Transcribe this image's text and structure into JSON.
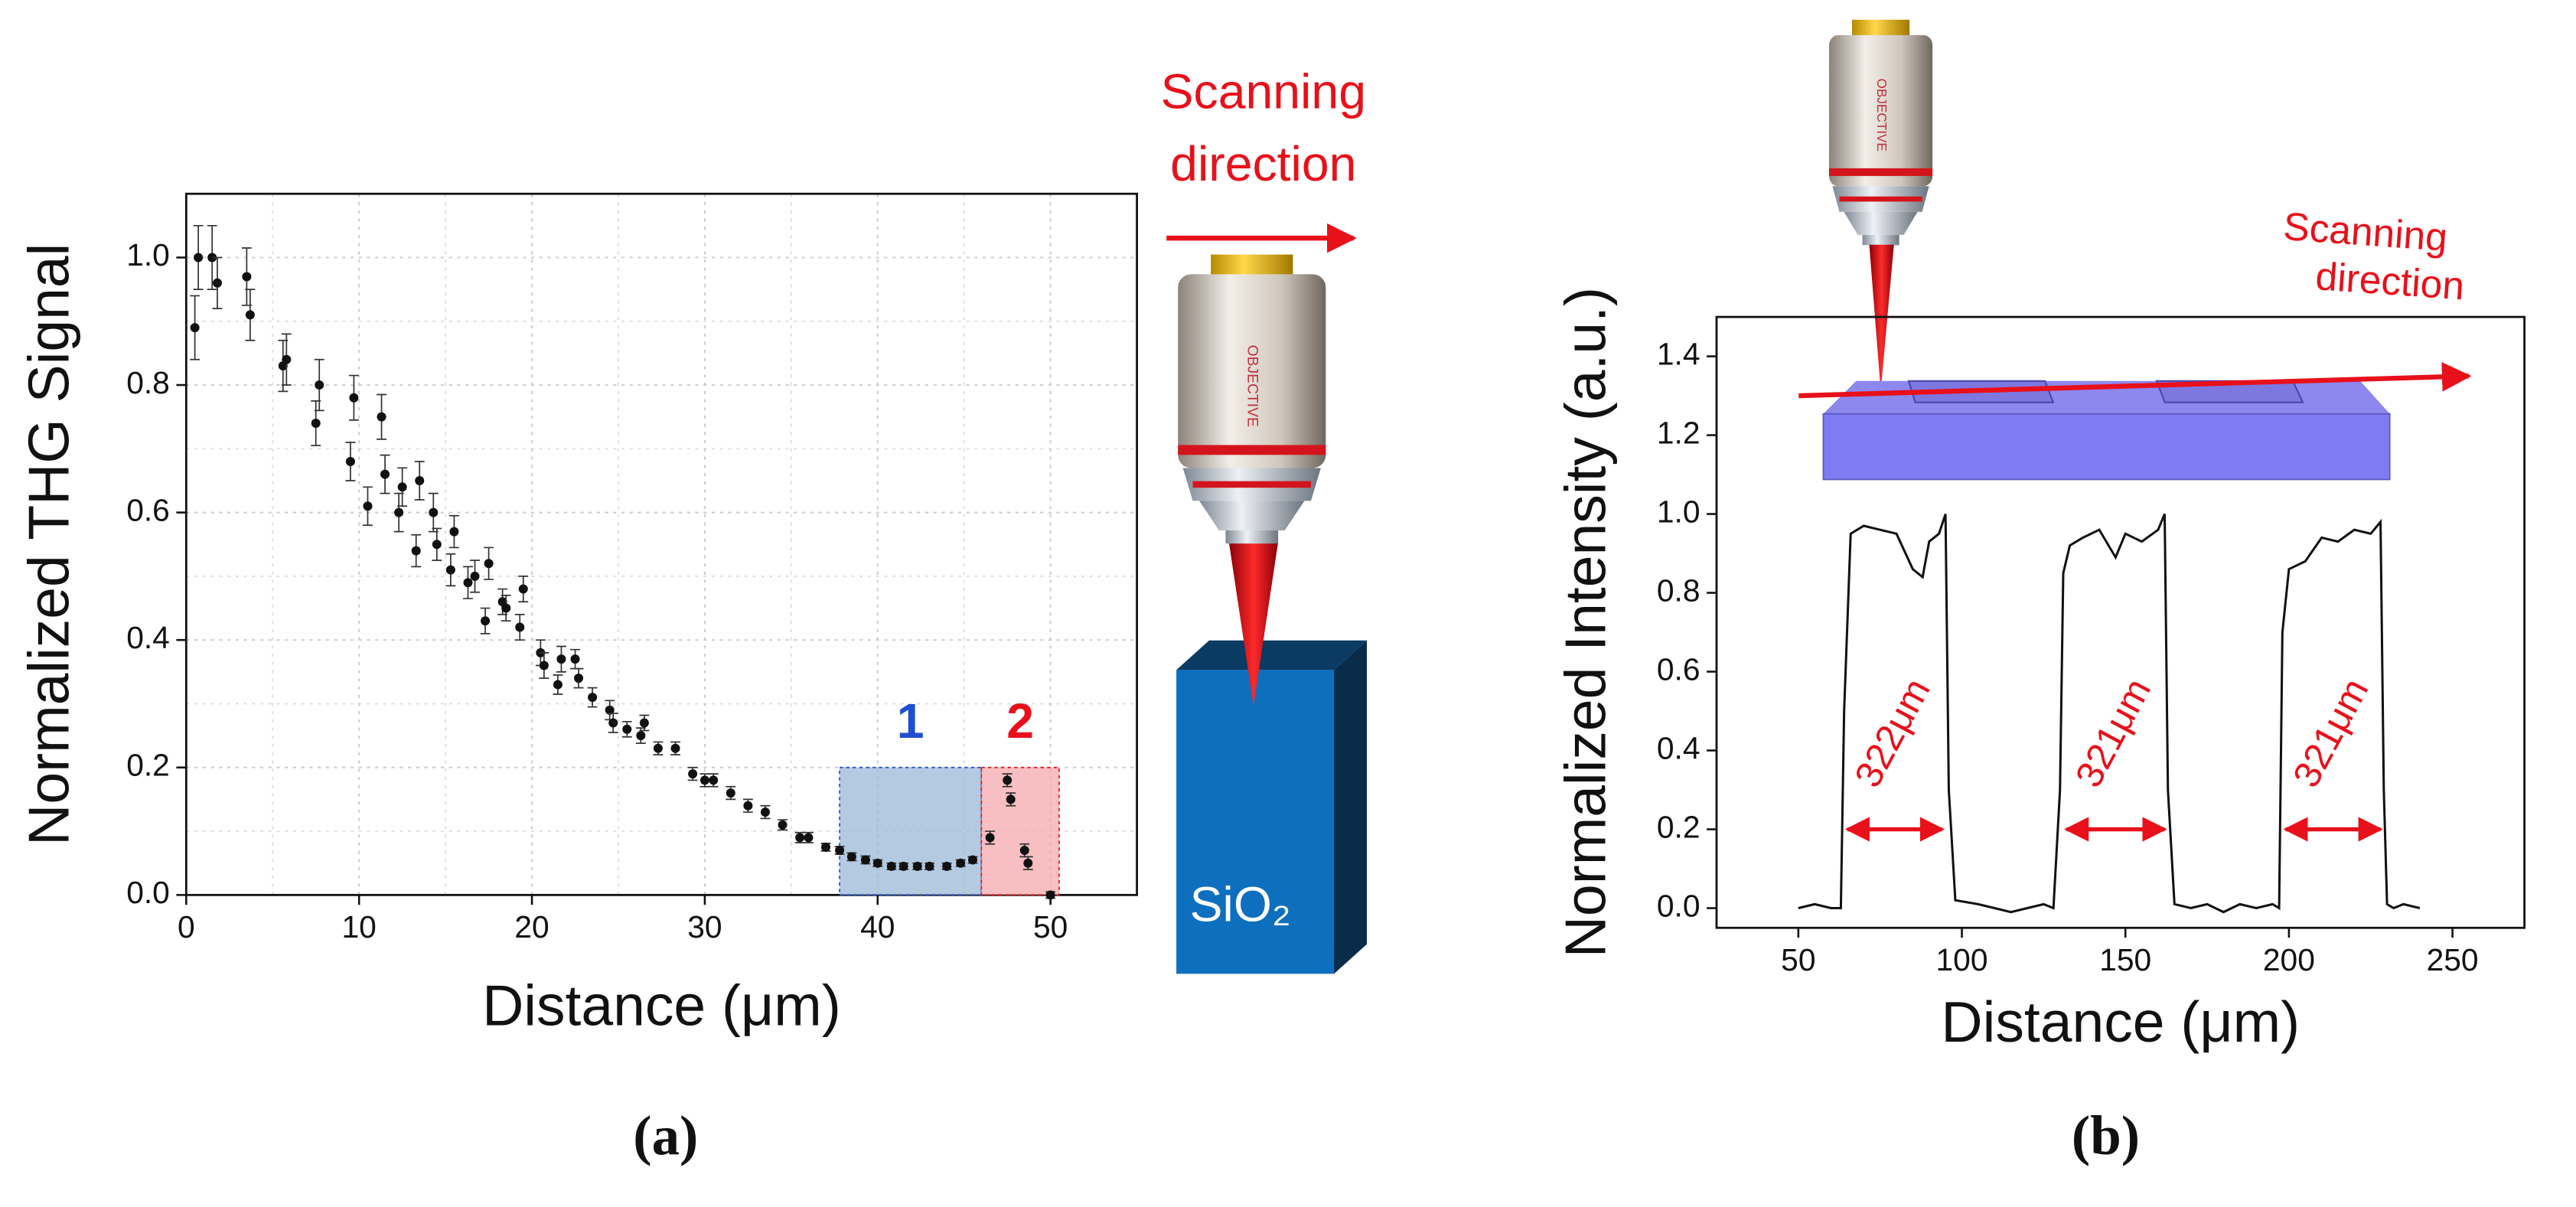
{
  "chart_data": [
    {
      "type": "scatter",
      "y_label": "Normalized THG Signal",
      "x_label": "Distance (μm)",
      "panel_label": "(a)",
      "x": [
        0.5,
        0.7,
        1.5,
        1.8,
        3.5,
        3.7,
        5.6,
        5.8,
        7.5,
        7.7,
        9.5,
        9.7,
        10.5,
        11.3,
        11.5,
        12.3,
        12.5,
        13.3,
        13.5,
        14.3,
        14.5,
        15.3,
        15.5,
        16.3,
        16.7,
        17.3,
        17.5,
        18.3,
        18.5,
        19.3,
        19.5,
        20.5,
        20.7,
        21.5,
        21.7,
        22.5,
        22.7,
        23.5,
        24.5,
        24.7,
        25.5,
        26.3,
        26.5,
        27.3,
        28.3,
        29.3,
        30,
        30.5,
        31.5,
        32.5,
        33.5,
        34.5,
        35.5,
        36,
        37,
        37.8,
        38.5,
        39.3,
        40,
        40.8,
        41.5,
        42.3,
        43,
        44,
        44.8,
        45.5,
        46.5,
        47.5,
        47.7,
        48.5,
        48.7,
        50
      ],
      "values": [
        0.89,
        1.0,
        1.0,
        0.96,
        0.97,
        0.91,
        0.83,
        0.84,
        0.74,
        0.8,
        0.68,
        0.78,
        0.61,
        0.75,
        0.66,
        0.6,
        0.64,
        0.54,
        0.65,
        0.6,
        0.55,
        0.51,
        0.57,
        0.49,
        0.5,
        0.43,
        0.52,
        0.46,
        0.45,
        0.42,
        0.48,
        0.38,
        0.36,
        0.33,
        0.37,
        0.37,
        0.34,
        0.31,
        0.29,
        0.27,
        0.26,
        0.25,
        0.27,
        0.23,
        0.23,
        0.19,
        0.18,
        0.18,
        0.16,
        0.14,
        0.13,
        0.11,
        0.09,
        0.09,
        0.075,
        0.07,
        0.06,
        0.055,
        0.05,
        0.045,
        0.045,
        0.045,
        0.045,
        0.045,
        0.05,
        0.055,
        0.09,
        0.18,
        0.15,
        0.07,
        0.05,
        0.0
      ],
      "errors": [
        0.05,
        0.05,
        0.05,
        0.04,
        0.045,
        0.04,
        0.04,
        0.04,
        0.035,
        0.04,
        0.03,
        0.035,
        0.03,
        0.035,
        0.03,
        0.03,
        0.03,
        0.025,
        0.03,
        0.03,
        0.025,
        0.025,
        0.025,
        0.025,
        0.025,
        0.02,
        0.025,
        0.02,
        0.02,
        0.02,
        0.02,
        0.02,
        0.02,
        0.015,
        0.02,
        0.015,
        0.015,
        0.015,
        0.015,
        0.015,
        0.012,
        0.012,
        0.012,
        0.01,
        0.01,
        0.01,
        0.01,
        0.01,
        0.01,
        0.01,
        0.01,
        0.008,
        0.008,
        0.008,
        0.006,
        0.006,
        0.006,
        0.006,
        0.005,
        0.005,
        0.005,
        0.005,
        0.005,
        0.005,
        0.005,
        0.005,
        0.01,
        0.01,
        0.01,
        0.01,
        0.01,
        0.005
      ],
      "color": "#111111",
      "xlim": [
        0,
        55
      ],
      "ylim": [
        0,
        1.1
      ],
      "xticks": [
        0,
        10,
        20,
        30,
        40,
        50
      ],
      "yticks": [
        {
          "value": 0,
          "label": "0.0"
        },
        0.2,
        0.4,
        0.6,
        0.8,
        {
          "value": 1,
          "label": "1.0"
        }
      ],
      "minor_xticks": [
        5,
        15,
        25,
        35,
        45
      ],
      "minor_yticks": [
        0.1,
        0.3,
        0.5,
        0.7,
        0.9
      ],
      "grid": true,
      "regions": [
        {
          "label": "1",
          "x": [
            37.8,
            46
          ],
          "y": [
            0,
            0.2
          ],
          "color": "#1f4fd1",
          "fill": "#9bb8d6"
        },
        {
          "label": "2",
          "x": [
            46,
            50.5
          ],
          "y": [
            0,
            0.2
          ],
          "color": "#e8101a",
          "fill": "#f4a9ac"
        }
      ]
    },
    {
      "type": "line",
      "y_label": "Normalized Intensity (a.u.)",
      "x_label": "Distance (μm)",
      "panel_label": "(b)",
      "x": [
        50,
        55,
        60,
        63,
        64,
        66,
        70,
        75,
        80,
        85,
        88,
        90,
        93,
        95,
        96,
        98,
        105,
        110,
        115,
        120,
        125,
        128,
        130,
        131,
        133,
        137,
        142,
        147,
        150,
        155,
        160,
        162,
        163,
        165,
        170,
        175,
        180,
        185,
        190,
        195,
        197,
        198,
        200,
        205,
        210,
        215,
        220,
        225,
        228,
        229,
        230,
        232,
        235,
        240
      ],
      "values": [
        0,
        0.01,
        0,
        0,
        0.5,
        0.95,
        0.97,
        0.96,
        0.95,
        0.86,
        0.84,
        0.93,
        0.95,
        1.0,
        0.3,
        0.02,
        0.01,
        0,
        -0.01,
        0,
        0.01,
        0,
        0.3,
        0.85,
        0.92,
        0.94,
        0.96,
        0.89,
        0.95,
        0.93,
        0.96,
        1.0,
        0.3,
        0.01,
        0,
        0.01,
        -0.01,
        0.01,
        0,
        0.01,
        0,
        0.7,
        0.86,
        0.88,
        0.94,
        0.93,
        0.96,
        0.95,
        0.98,
        0.3,
        0.01,
        0,
        0.01,
        0
      ],
      "color": "#111111",
      "xlim": [
        25,
        272
      ],
      "ylim": [
        -0.05,
        1.5
      ],
      "xticks": [
        50,
        100,
        150,
        200,
        250
      ],
      "yticks": [
        {
          "value": 0,
          "label": "0.0"
        },
        0.2,
        0.4,
        0.6,
        0.8,
        {
          "value": 1,
          "label": "1.0"
        },
        1.2,
        1.4
      ],
      "grid": false,
      "measurements": [
        {
          "label": "322μm",
          "x": [
            64,
            95
          ],
          "y": 0.2
        },
        {
          "label": "321μm",
          "x": [
            131,
            163
          ],
          "y": 0.2
        },
        {
          "label": "321μm",
          "x": [
            198,
            229
          ],
          "y": 0.2
        }
      ]
    }
  ],
  "illustrations": {
    "a": {
      "direction_label": [
        "Scanning",
        "direction"
      ],
      "objective_label": "OBJECTIVE",
      "sample_label": "SiO₂"
    },
    "b": {
      "direction_label": [
        "Scanning",
        "direction"
      ],
      "objective_label": "OBJECTIVE"
    }
  }
}
